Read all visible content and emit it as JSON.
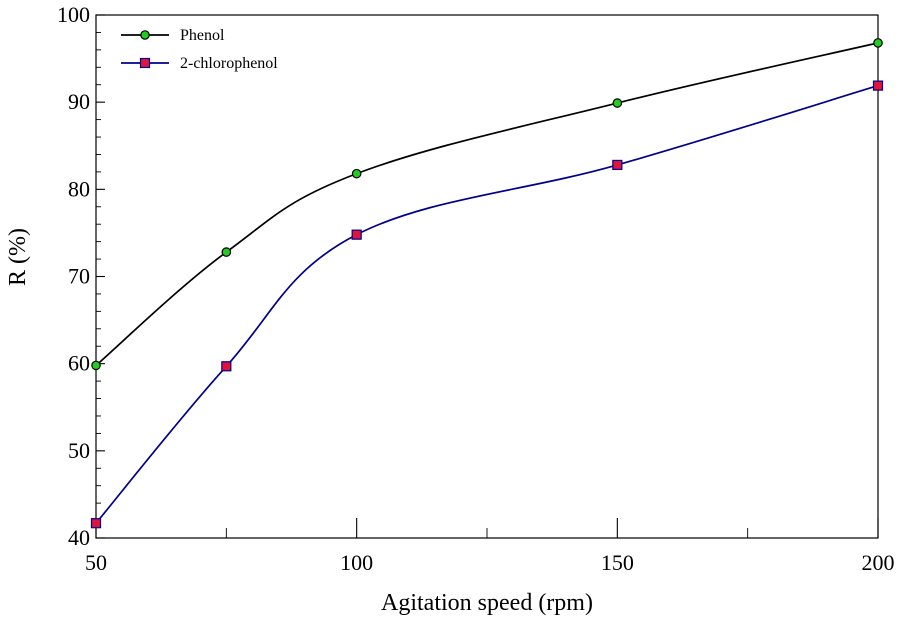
{
  "chart_data": {
    "type": "line",
    "title": "",
    "xlabel": "Agitation speed (rpm)",
    "ylabel": "R (%)",
    "xlim": [
      50,
      200
    ],
    "ylim": [
      40,
      100
    ],
    "x_ticks": [
      "50",
      "100",
      "150",
      "200"
    ],
    "x_tick_values": [
      50,
      100,
      150,
      200
    ],
    "y_ticks": [
      "40",
      "50",
      "60",
      "70",
      "80",
      "90",
      "100"
    ],
    "y_tick_values": [
      40,
      50,
      60,
      70,
      80,
      90,
      100
    ],
    "x_minor_ticks": [
      75,
      125,
      175
    ],
    "y_minor_step": 2,
    "grid": false,
    "legend_position": "top-left",
    "x": [
      50,
      75,
      100,
      150,
      200
    ],
    "series": [
      {
        "name": "Phenol",
        "values": [
          59.8,
          72.8,
          81.8,
          89.9,
          96.8
        ],
        "line_color": "#000000",
        "marker": "circle",
        "marker_fill": "#22cc22",
        "marker_stroke": "#000000"
      },
      {
        "name": "2-chlorophenol",
        "values": [
          41.7,
          59.7,
          74.8,
          82.8,
          91.9
        ],
        "line_color": "#00008b",
        "marker": "square",
        "marker_fill": "#e0143c",
        "marker_stroke": "#00008b"
      }
    ]
  }
}
